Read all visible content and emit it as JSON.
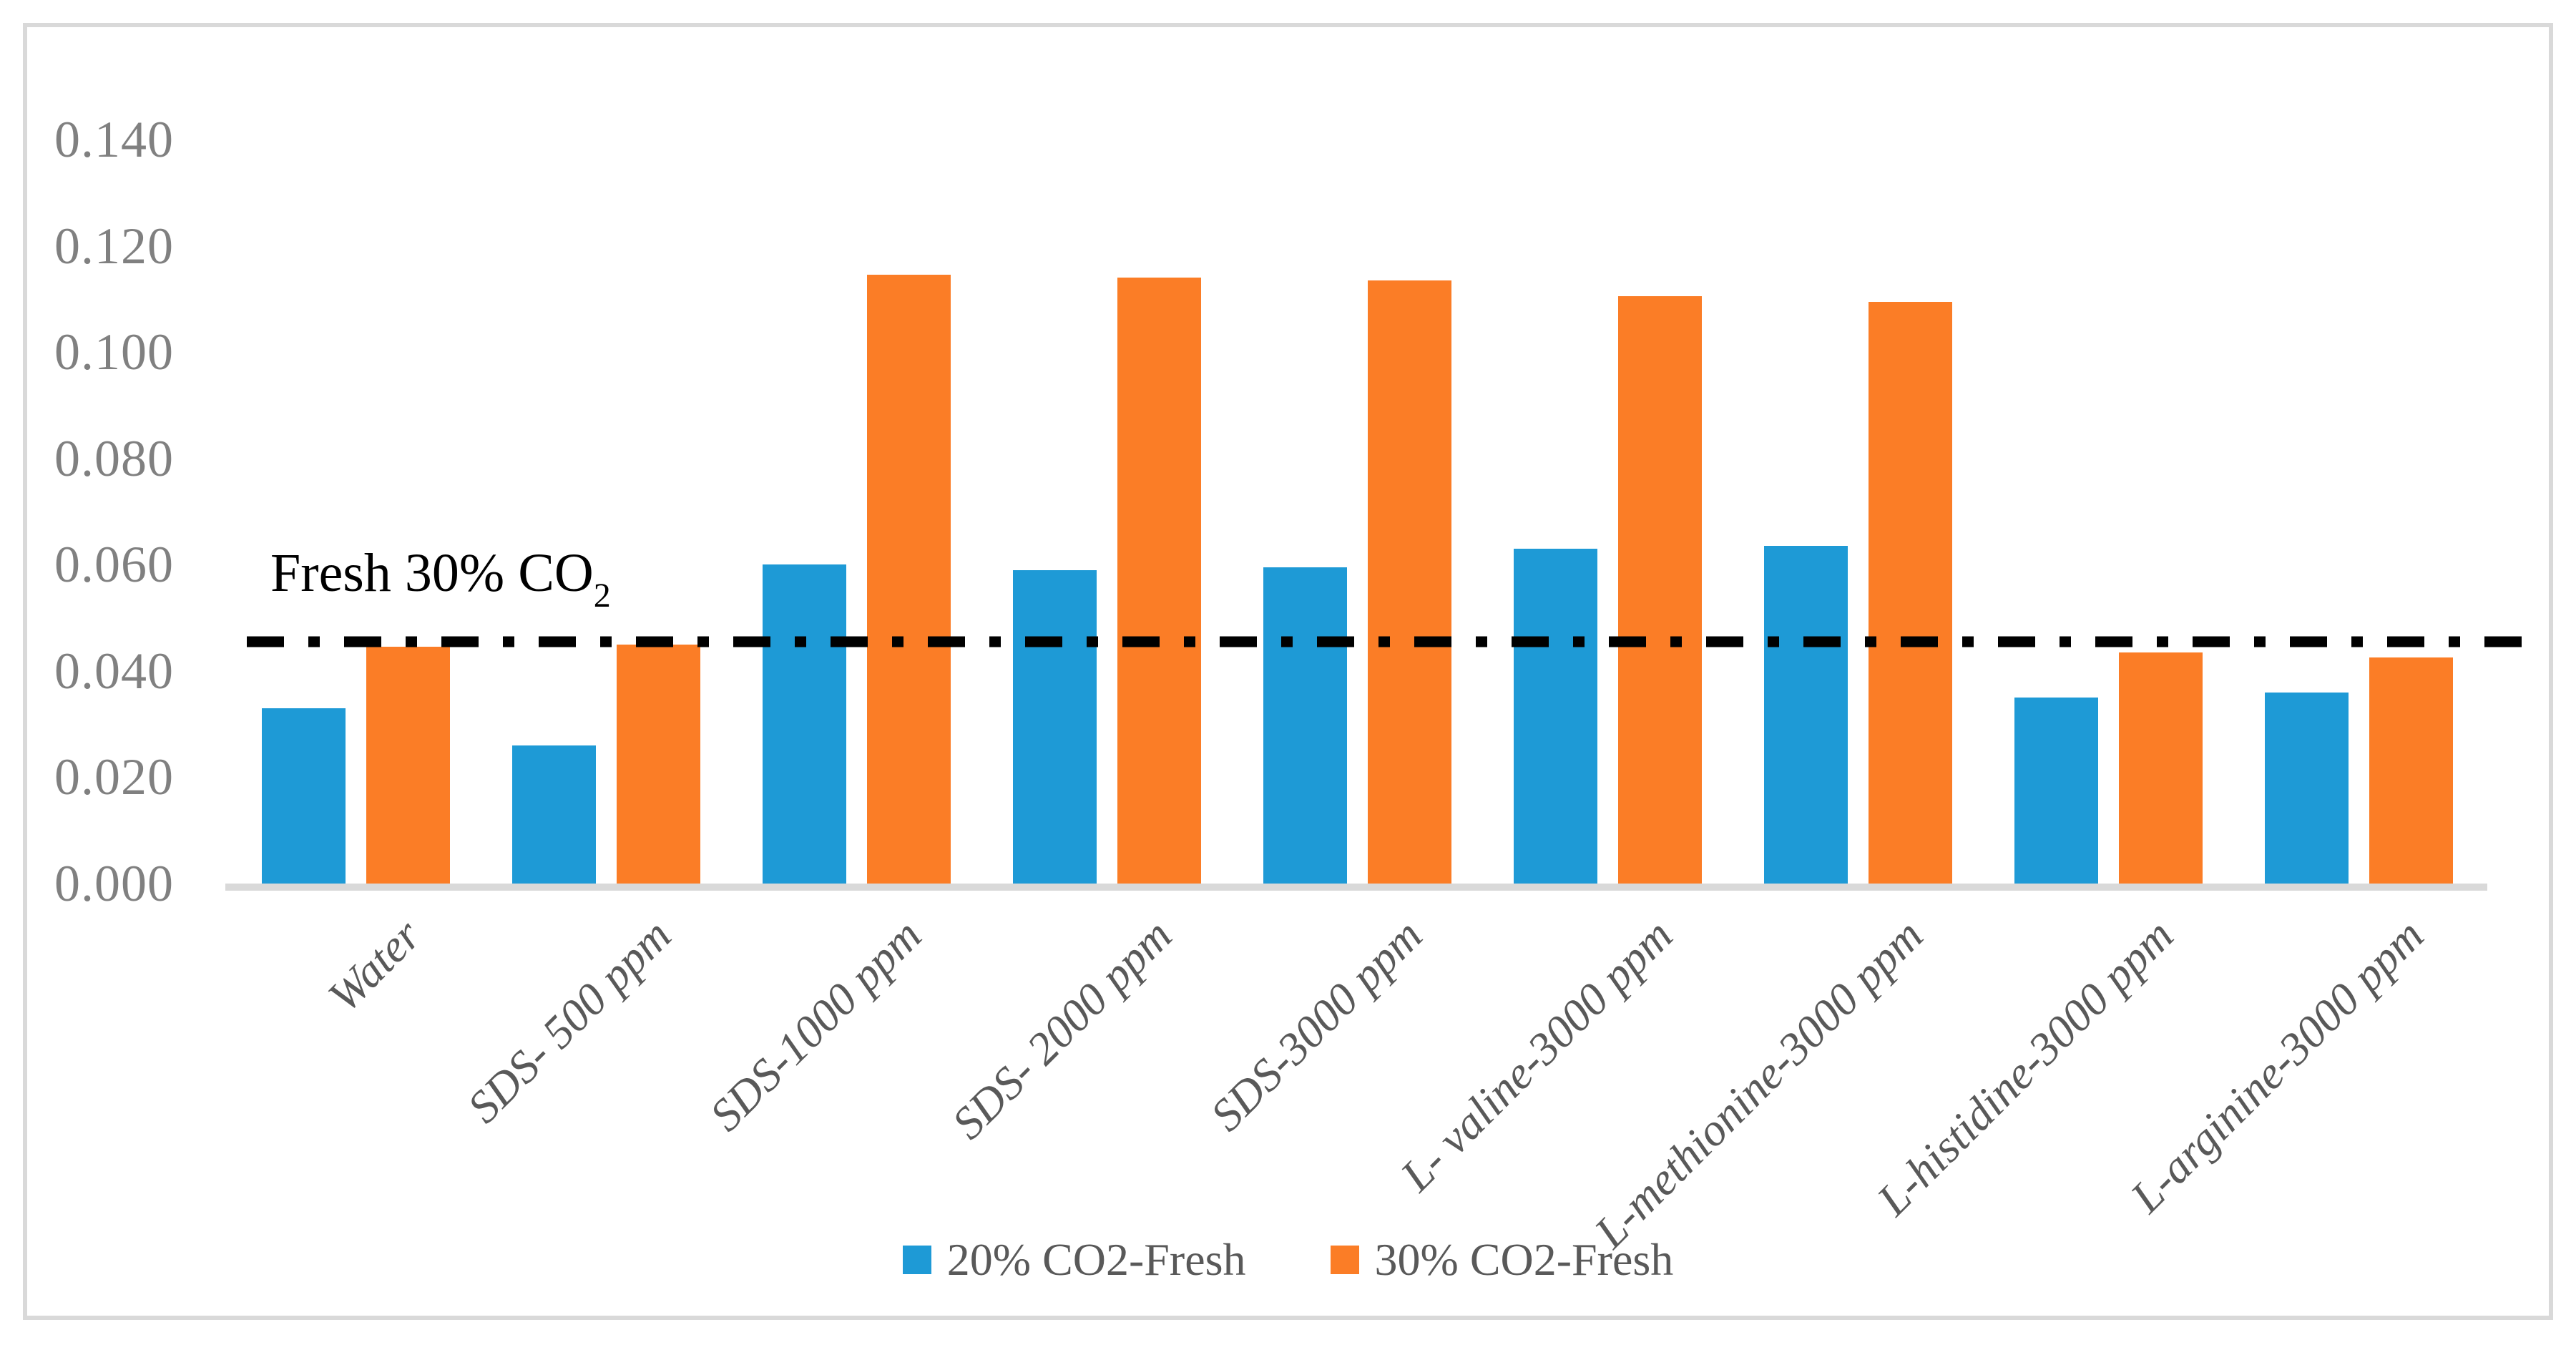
{
  "figure": {
    "background": "#ffffff",
    "border_color": "#D9D9D9",
    "axis_line_color": "#D9D9D9",
    "tick_label_color": "#808080",
    "category_label_color": "#595959",
    "annotation": {
      "text": "Fresh 30% CO",
      "sub": "2"
    }
  },
  "chart_data": {
    "type": "bar",
    "title": "",
    "xlabel": "",
    "ylabel": "",
    "ylim": [
      0,
      0.14
    ],
    "grid": false,
    "legend_position": "bottom",
    "y_ticks": [
      "0.140",
      "0.120",
      "0.100",
      "0.080",
      "0.060",
      "0.040",
      "0.020",
      "0.000"
    ],
    "categories": [
      "Water",
      "SDS- 500 ppm",
      "SDS-1000 ppm",
      "SDS- 2000 ppm",
      "SDS-3000 ppm",
      "L- valine-3000 ppm",
      "L-methionine-3000 ppm",
      "L-histidine-3000 ppm",
      "L-arginine-3000 ppm"
    ],
    "series": [
      {
        "name": "20% CO2-Fresh",
        "color": "#1E9AD6",
        "values": [
          0.033,
          0.026,
          0.06,
          0.059,
          0.0595,
          0.063,
          0.0635,
          0.035,
          0.036
        ]
      },
      {
        "name": "30% CO2-Fresh",
        "color": "#FB7D26",
        "values": [
          0.0445,
          0.045,
          0.1145,
          0.114,
          0.1135,
          0.1105,
          0.1095,
          0.0435,
          0.0425
        ]
      }
    ],
    "reference_line": {
      "value": 0.0455,
      "label": "Fresh 30% CO2",
      "style": "dash-dot",
      "color": "#000000"
    }
  }
}
